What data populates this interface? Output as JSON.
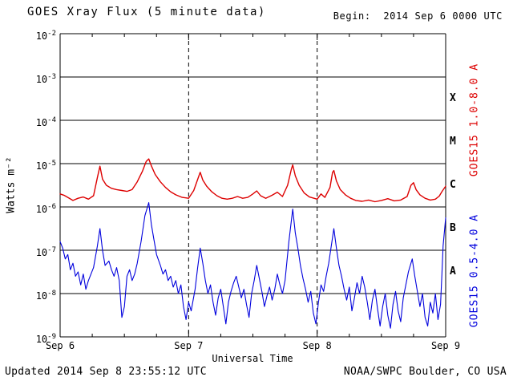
{
  "header": {
    "title": "GOES Xray Flux (5 minute data)",
    "begin_label": "Begin:  2014 Sep 6 0000 UTC"
  },
  "footer": {
    "updated": "Updated 2014 Sep 8 23:55:12 UTC",
    "source": "NOAA/SWPC Boulder, CO USA"
  },
  "colors": {
    "long_channel": "#dd0000",
    "short_channel": "#0000dd",
    "axes": "#000000",
    "background": "#ffffff"
  },
  "chart_data": {
    "type": "line",
    "title": "GOES Xray Flux (5 minute data)",
    "xlabel": "Universal Time",
    "ylabel": "Watts m⁻²",
    "y_scale": "log10",
    "y_top_exp": -2,
    "y_bottom_exp": -9,
    "y_ticks_exp": [
      -2,
      -3,
      -4,
      -5,
      -6,
      -7,
      -8,
      -9
    ],
    "xlim": [
      0,
      3
    ],
    "x_unit": "days since 2014 Sep 6 0000 UTC",
    "x_ticks": [
      {
        "t": 0,
        "label": "Sep 6"
      },
      {
        "t": 1,
        "label": "Sep 7"
      },
      {
        "t": 2,
        "label": "Sep 8"
      },
      {
        "t": 3,
        "label": "Sep 9"
      }
    ],
    "x_gridlines": [
      1,
      2
    ],
    "grid": {
      "horizontal": "solid line at each decade",
      "vertical": "dashed at day boundaries"
    },
    "flare_classes": [
      {
        "label": "X",
        "center_exp": -3.5
      },
      {
        "label": "M",
        "center_exp": -4.5
      },
      {
        "label": "C",
        "center_exp": -5.5
      },
      {
        "label": "B",
        "center_exp": -6.5
      },
      {
        "label": "A",
        "center_exp": -7.5
      }
    ],
    "series": [
      {
        "id": "long",
        "name": "GOES15 1.0-8.0 A",
        "wavelength": "1.0-8.0 A",
        "color": "#dd0000",
        "points": [
          [
            0.0,
            -5.7
          ],
          [
            0.03,
            -5.73
          ],
          [
            0.06,
            -5.78
          ],
          [
            0.1,
            -5.85
          ],
          [
            0.14,
            -5.8
          ],
          [
            0.18,
            -5.77
          ],
          [
            0.22,
            -5.82
          ],
          [
            0.26,
            -5.74
          ],
          [
            0.29,
            -5.32
          ],
          [
            0.31,
            -5.06
          ],
          [
            0.33,
            -5.36
          ],
          [
            0.36,
            -5.5
          ],
          [
            0.4,
            -5.57
          ],
          [
            0.44,
            -5.6
          ],
          [
            0.48,
            -5.62
          ],
          [
            0.52,
            -5.64
          ],
          [
            0.56,
            -5.6
          ],
          [
            0.6,
            -5.42
          ],
          [
            0.64,
            -5.18
          ],
          [
            0.67,
            -4.95
          ],
          [
            0.69,
            -4.89
          ],
          [
            0.71,
            -5.05
          ],
          [
            0.74,
            -5.25
          ],
          [
            0.78,
            -5.42
          ],
          [
            0.82,
            -5.55
          ],
          [
            0.86,
            -5.65
          ],
          [
            0.9,
            -5.72
          ],
          [
            0.95,
            -5.78
          ],
          [
            1.0,
            -5.8
          ],
          [
            1.04,
            -5.62
          ],
          [
            1.08,
            -5.28
          ],
          [
            1.09,
            -5.2
          ],
          [
            1.11,
            -5.38
          ],
          [
            1.14,
            -5.52
          ],
          [
            1.18,
            -5.65
          ],
          [
            1.22,
            -5.74
          ],
          [
            1.26,
            -5.8
          ],
          [
            1.3,
            -5.82
          ],
          [
            1.34,
            -5.8
          ],
          [
            1.38,
            -5.76
          ],
          [
            1.42,
            -5.8
          ],
          [
            1.46,
            -5.78
          ],
          [
            1.5,
            -5.7
          ],
          [
            1.53,
            -5.63
          ],
          [
            1.56,
            -5.74
          ],
          [
            1.6,
            -5.8
          ],
          [
            1.65,
            -5.73
          ],
          [
            1.69,
            -5.66
          ],
          [
            1.73,
            -5.76
          ],
          [
            1.77,
            -5.5
          ],
          [
            1.8,
            -5.12
          ],
          [
            1.81,
            -5.03
          ],
          [
            1.83,
            -5.28
          ],
          [
            1.86,
            -5.5
          ],
          [
            1.9,
            -5.68
          ],
          [
            1.94,
            -5.77
          ],
          [
            2.0,
            -5.82
          ],
          [
            2.03,
            -5.7
          ],
          [
            2.06,
            -5.78
          ],
          [
            2.1,
            -5.55
          ],
          [
            2.12,
            -5.2
          ],
          [
            2.13,
            -5.16
          ],
          [
            2.15,
            -5.4
          ],
          [
            2.18,
            -5.6
          ],
          [
            2.22,
            -5.72
          ],
          [
            2.26,
            -5.8
          ],
          [
            2.3,
            -5.85
          ],
          [
            2.35,
            -5.87
          ],
          [
            2.4,
            -5.84
          ],
          [
            2.45,
            -5.88
          ],
          [
            2.5,
            -5.85
          ],
          [
            2.55,
            -5.81
          ],
          [
            2.6,
            -5.86
          ],
          [
            2.65,
            -5.84
          ],
          [
            2.7,
            -5.76
          ],
          [
            2.73,
            -5.5
          ],
          [
            2.75,
            -5.44
          ],
          [
            2.77,
            -5.6
          ],
          [
            2.8,
            -5.72
          ],
          [
            2.84,
            -5.8
          ],
          [
            2.88,
            -5.84
          ],
          [
            2.92,
            -5.82
          ],
          [
            2.95,
            -5.75
          ],
          [
            2.97,
            -5.65
          ],
          [
            3.0,
            -5.52
          ]
        ]
      },
      {
        "id": "short",
        "name": "GOES15 0.5-4.0 A",
        "wavelength": "0.5-4.0 A",
        "color": "#0000dd",
        "points": [
          [
            0.0,
            -6.8
          ],
          [
            0.02,
            -6.95
          ],
          [
            0.04,
            -7.2
          ],
          [
            0.06,
            -7.1
          ],
          [
            0.08,
            -7.45
          ],
          [
            0.1,
            -7.3
          ],
          [
            0.12,
            -7.6
          ],
          [
            0.14,
            -7.5
          ],
          [
            0.16,
            -7.8
          ],
          [
            0.18,
            -7.55
          ],
          [
            0.2,
            -7.9
          ],
          [
            0.22,
            -7.7
          ],
          [
            0.24,
            -7.55
          ],
          [
            0.26,
            -7.4
          ],
          [
            0.29,
            -6.9
          ],
          [
            0.31,
            -6.5
          ],
          [
            0.33,
            -7.0
          ],
          [
            0.35,
            -7.35
          ],
          [
            0.38,
            -7.25
          ],
          [
            0.4,
            -7.45
          ],
          [
            0.42,
            -7.6
          ],
          [
            0.44,
            -7.4
          ],
          [
            0.46,
            -7.7
          ],
          [
            0.48,
            -8.55
          ],
          [
            0.5,
            -8.3
          ],
          [
            0.52,
            -7.6
          ],
          [
            0.54,
            -7.45
          ],
          [
            0.56,
            -7.7
          ],
          [
            0.58,
            -7.55
          ],
          [
            0.6,
            -7.3
          ],
          [
            0.63,
            -6.8
          ],
          [
            0.66,
            -6.2
          ],
          [
            0.69,
            -5.9
          ],
          [
            0.71,
            -6.4
          ],
          [
            0.73,
            -6.75
          ],
          [
            0.75,
            -7.1
          ],
          [
            0.78,
            -7.35
          ],
          [
            0.8,
            -7.55
          ],
          [
            0.82,
            -7.45
          ],
          [
            0.84,
            -7.7
          ],
          [
            0.86,
            -7.6
          ],
          [
            0.88,
            -7.85
          ],
          [
            0.9,
            -7.7
          ],
          [
            0.92,
            -8.0
          ],
          [
            0.94,
            -7.8
          ],
          [
            0.96,
            -8.3
          ],
          [
            0.98,
            -8.6
          ],
          [
            1.0,
            -8.2
          ],
          [
            1.02,
            -8.4
          ],
          [
            1.05,
            -7.9
          ],
          [
            1.07,
            -7.4
          ],
          [
            1.09,
            -6.95
          ],
          [
            1.11,
            -7.3
          ],
          [
            1.13,
            -7.7
          ],
          [
            1.15,
            -8.0
          ],
          [
            1.17,
            -7.8
          ],
          [
            1.19,
            -8.2
          ],
          [
            1.21,
            -8.5
          ],
          [
            1.23,
            -8.1
          ],
          [
            1.25,
            -7.9
          ],
          [
            1.27,
            -8.3
          ],
          [
            1.29,
            -8.7
          ],
          [
            1.31,
            -8.2
          ],
          [
            1.33,
            -7.95
          ],
          [
            1.35,
            -7.75
          ],
          [
            1.37,
            -7.6
          ],
          [
            1.39,
            -7.85
          ],
          [
            1.41,
            -8.1
          ],
          [
            1.43,
            -7.9
          ],
          [
            1.45,
            -8.25
          ],
          [
            1.47,
            -8.55
          ],
          [
            1.49,
            -8.0
          ],
          [
            1.51,
            -7.7
          ],
          [
            1.53,
            -7.35
          ],
          [
            1.55,
            -7.65
          ],
          [
            1.57,
            -7.95
          ],
          [
            1.59,
            -8.3
          ],
          [
            1.61,
            -8.05
          ],
          [
            1.63,
            -7.85
          ],
          [
            1.65,
            -8.15
          ],
          [
            1.67,
            -7.9
          ],
          [
            1.69,
            -7.55
          ],
          [
            1.71,
            -7.8
          ],
          [
            1.73,
            -8.0
          ],
          [
            1.75,
            -7.7
          ],
          [
            1.78,
            -6.8
          ],
          [
            1.81,
            -6.05
          ],
          [
            1.83,
            -6.6
          ],
          [
            1.85,
            -6.95
          ],
          [
            1.87,
            -7.35
          ],
          [
            1.89,
            -7.65
          ],
          [
            1.91,
            -7.9
          ],
          [
            1.93,
            -8.2
          ],
          [
            1.95,
            -7.95
          ],
          [
            1.97,
            -8.45
          ],
          [
            1.99,
            -8.7
          ],
          [
            2.01,
            -8.2
          ],
          [
            2.03,
            -7.8
          ],
          [
            2.05,
            -7.95
          ],
          [
            2.07,
            -7.6
          ],
          [
            2.09,
            -7.3
          ],
          [
            2.11,
            -6.9
          ],
          [
            2.13,
            -6.5
          ],
          [
            2.15,
            -6.95
          ],
          [
            2.17,
            -7.35
          ],
          [
            2.19,
            -7.6
          ],
          [
            2.21,
            -7.9
          ],
          [
            2.23,
            -8.15
          ],
          [
            2.25,
            -7.85
          ],
          [
            2.27,
            -8.4
          ],
          [
            2.29,
            -8.1
          ],
          [
            2.31,
            -7.75
          ],
          [
            2.33,
            -8.0
          ],
          [
            2.35,
            -7.6
          ],
          [
            2.37,
            -7.85
          ],
          [
            2.39,
            -8.2
          ],
          [
            2.41,
            -8.6
          ],
          [
            2.43,
            -8.15
          ],
          [
            2.45,
            -7.9
          ],
          [
            2.47,
            -8.35
          ],
          [
            2.49,
            -8.75
          ],
          [
            2.51,
            -8.3
          ],
          [
            2.53,
            -8.0
          ],
          [
            2.55,
            -8.5
          ],
          [
            2.57,
            -8.8
          ],
          [
            2.59,
            -8.25
          ],
          [
            2.61,
            -7.95
          ],
          [
            2.63,
            -8.4
          ],
          [
            2.65,
            -8.65
          ],
          [
            2.67,
            -8.1
          ],
          [
            2.69,
            -7.8
          ],
          [
            2.71,
            -7.5
          ],
          [
            2.74,
            -7.2
          ],
          [
            2.76,
            -7.6
          ],
          [
            2.78,
            -7.95
          ],
          [
            2.8,
            -8.3
          ],
          [
            2.82,
            -8.0
          ],
          [
            2.84,
            -8.55
          ],
          [
            2.86,
            -8.75
          ],
          [
            2.88,
            -8.2
          ],
          [
            2.9,
            -8.45
          ],
          [
            2.92,
            -8.0
          ],
          [
            2.94,
            -8.6
          ],
          [
            2.96,
            -8.25
          ],
          [
            2.97,
            -7.6
          ],
          [
            2.98,
            -6.9
          ],
          [
            3.0,
            -6.25
          ]
        ]
      }
    ]
  }
}
